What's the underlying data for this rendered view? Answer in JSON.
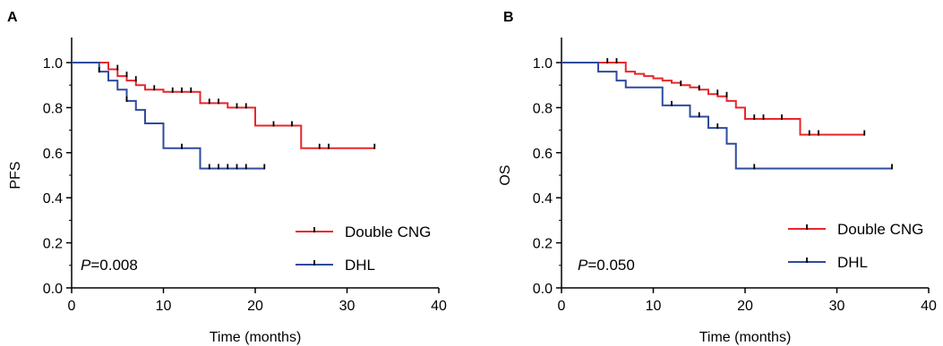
{
  "chart_data": [
    {
      "type": "line",
      "subtype": "kaplan-meier",
      "panel_label": "A",
      "xlabel": "Time (months)",
      "ylabel": "PFS",
      "xlim": [
        0,
        40
      ],
      "ylim": [
        0,
        1.0
      ],
      "xticks": [
        "0",
        "10",
        "20",
        "30",
        "40"
      ],
      "yticks": [
        "0.0",
        "0.2",
        "0.4",
        "0.6",
        "0.8",
        "1.0"
      ],
      "pvalue_prefix": "P",
      "pvalue_text": "=0.008",
      "legend_position": "bottom-right",
      "grid": false,
      "series": [
        {
          "name": "Double CNG",
          "color": "#e8262a",
          "steps": [
            [
              0,
              1.0
            ],
            [
              4,
              0.97
            ],
            [
              5,
              0.94
            ],
            [
              6,
              0.92
            ],
            [
              7,
              0.9
            ],
            [
              8,
              0.88
            ],
            [
              10,
              0.87
            ],
            [
              14,
              0.82
            ],
            [
              17,
              0.8
            ],
            [
              20,
              0.72
            ],
            [
              25,
              0.62
            ],
            [
              33,
              0.62
            ]
          ],
          "censor": [
            [
              5,
              0.97
            ],
            [
              6,
              0.94
            ],
            [
              7,
              0.92
            ],
            [
              9,
              0.88
            ],
            [
              11,
              0.87
            ],
            [
              12,
              0.87
            ],
            [
              13,
              0.87
            ],
            [
              15,
              0.82
            ],
            [
              16,
              0.82
            ],
            [
              18,
              0.8
            ],
            [
              19,
              0.8
            ],
            [
              22,
              0.72
            ],
            [
              24,
              0.72
            ],
            [
              27,
              0.62
            ],
            [
              28,
              0.62
            ],
            [
              33,
              0.62
            ]
          ]
        },
        {
          "name": "DHL",
          "color": "#2e4b9e",
          "steps": [
            [
              0,
              1.0
            ],
            [
              3,
              0.96
            ],
            [
              4,
              0.92
            ],
            [
              5,
              0.88
            ],
            [
              6,
              0.83
            ],
            [
              7,
              0.79
            ],
            [
              8,
              0.73
            ],
            [
              10,
              0.62
            ],
            [
              14,
              0.53
            ],
            [
              21,
              0.53
            ]
          ],
          "censor": [
            [
              3,
              0.96
            ],
            [
              6,
              0.83
            ],
            [
              12,
              0.62
            ],
            [
              15,
              0.53
            ],
            [
              16,
              0.53
            ],
            [
              17,
              0.53
            ],
            [
              18,
              0.53
            ],
            [
              19,
              0.53
            ],
            [
              21,
              0.53
            ]
          ]
        }
      ]
    },
    {
      "type": "line",
      "subtype": "kaplan-meier",
      "panel_label": "B",
      "xlabel": "Time (months)",
      "ylabel": "OS",
      "xlim": [
        0,
        40
      ],
      "ylim": [
        0,
        1.0
      ],
      "xticks": [
        "0",
        "10",
        "20",
        "30",
        "40"
      ],
      "yticks": [
        "0.0",
        "0.2",
        "0.4",
        "0.6",
        "0.8",
        "1.0"
      ],
      "pvalue_prefix": "P",
      "pvalue_text": "=0.050",
      "legend_position": "bottom-right",
      "grid": false,
      "series": [
        {
          "name": "Double CNG",
          "color": "#e8262a",
          "steps": [
            [
              0,
              1.0
            ],
            [
              7,
              0.96
            ],
            [
              8,
              0.95
            ],
            [
              9,
              0.94
            ],
            [
              10,
              0.93
            ],
            [
              11,
              0.92
            ],
            [
              12,
              0.91
            ],
            [
              13,
              0.9
            ],
            [
              14,
              0.89
            ],
            [
              15,
              0.88
            ],
            [
              16,
              0.86
            ],
            [
              17,
              0.85
            ],
            [
              18,
              0.83
            ],
            [
              19,
              0.8
            ],
            [
              20,
              0.75
            ],
            [
              26,
              0.68
            ],
            [
              33,
              0.68
            ]
          ],
          "censor": [
            [
              5,
              1.0
            ],
            [
              6,
              1.0
            ],
            [
              13,
              0.9
            ],
            [
              15,
              0.88
            ],
            [
              17,
              0.86
            ],
            [
              18,
              0.85
            ],
            [
              21,
              0.75
            ],
            [
              22,
              0.75
            ],
            [
              24,
              0.75
            ],
            [
              27,
              0.68
            ],
            [
              28,
              0.68
            ],
            [
              33,
              0.68
            ]
          ]
        },
        {
          "name": "DHL",
          "color": "#2e4b9e",
          "steps": [
            [
              0,
              1.0
            ],
            [
              4,
              0.96
            ],
            [
              6,
              0.92
            ],
            [
              7,
              0.89
            ],
            [
              11,
              0.81
            ],
            [
              14,
              0.76
            ],
            [
              16,
              0.71
            ],
            [
              18,
              0.64
            ],
            [
              19,
              0.53
            ],
            [
              36,
              0.53
            ]
          ],
          "censor": [
            [
              12,
              0.81
            ],
            [
              15,
              0.76
            ],
            [
              17,
              0.71
            ],
            [
              21,
              0.53
            ],
            [
              36,
              0.53
            ]
          ]
        }
      ]
    }
  ]
}
